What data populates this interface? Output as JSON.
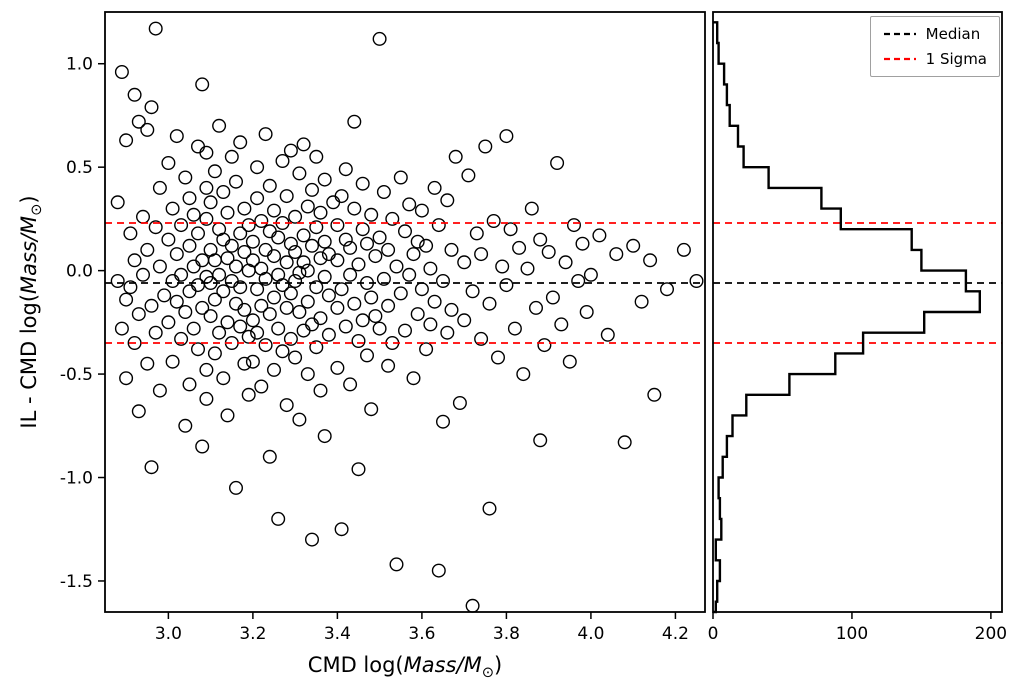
{
  "chart_data": {
    "type": "scatter",
    "title": "",
    "xlabel_parts": {
      "pre": "CMD log(",
      "math": "Mass/M",
      "sun": "⊙",
      "post": ")"
    },
    "ylabel_parts": {
      "pre": "IL - CMD log(",
      "math": "Mass/M",
      "sun": "⊙",
      "post": ")"
    },
    "xlim": [
      2.85,
      4.27
    ],
    "ylim": [
      -1.65,
      1.25
    ],
    "xticks": [
      3.0,
      3.2,
      3.4,
      3.6,
      3.8,
      4.0,
      4.2
    ],
    "xtick_labels": [
      "3.0",
      "3.2",
      "3.4",
      "3.6",
      "3.8",
      "4.0",
      "4.2"
    ],
    "yticks": [
      -1.5,
      -1.0,
      -0.5,
      0.0,
      0.5,
      1.0
    ],
    "ytick_labels": [
      "-1.5",
      "-1.0",
      "-0.5",
      "0.0",
      "0.5",
      "1.0"
    ],
    "median": -0.06,
    "sigma_upper": 0.23,
    "sigma_lower": -0.35,
    "colors": {
      "marker": "#000000",
      "median": "#000000",
      "sigma": "#ff0000",
      "hist": "#000000"
    },
    "legend": [
      {
        "label": "Median",
        "color": "#000000",
        "style": "dashed"
      },
      {
        "label": "1 Sigma",
        "color": "#ff0000",
        "style": "dashed"
      }
    ],
    "histogram": {
      "type": "step",
      "orientation": "horizontal",
      "xlim": [
        0,
        208
      ],
      "xticks": [
        0,
        100,
        200
      ],
      "xtick_labels": [
        "0",
        "100",
        "200"
      ],
      "bin_edges": [
        -1.7,
        -1.6,
        -1.5,
        -1.4,
        -1.3,
        -1.2,
        -1.1,
        -1.0,
        -0.9,
        -0.8,
        -0.7,
        -0.6,
        -0.5,
        -0.4,
        -0.3,
        -0.2,
        -0.1,
        0.0,
        0.1,
        0.2,
        0.3,
        0.4,
        0.5,
        0.6,
        0.7,
        0.8,
        0.9,
        1.0,
        1.1,
        1.2
      ],
      "counts": [
        2,
        3,
        5,
        2,
        6,
        5,
        4,
        7,
        10,
        14,
        24,
        55,
        88,
        108,
        152,
        192,
        182,
        150,
        143,
        92,
        78,
        40,
        22,
        18,
        12,
        10,
        8,
        4,
        3
      ]
    },
    "points": [
      [
        2.88,
        -0.05
      ],
      [
        2.88,
        0.33
      ],
      [
        2.89,
        -0.28
      ],
      [
        2.89,
        0.96
      ],
      [
        2.9,
        0.63
      ],
      [
        2.9,
        -0.14
      ],
      [
        2.9,
        -0.52
      ],
      [
        2.91,
        0.18
      ],
      [
        2.91,
        -0.08
      ],
      [
        2.92,
        0.85
      ],
      [
        2.92,
        -0.35
      ],
      [
        2.92,
        0.05
      ],
      [
        2.93,
        0.72
      ],
      [
        2.93,
        -0.21
      ],
      [
        2.93,
        -0.68
      ],
      [
        2.94,
        0.26
      ],
      [
        2.94,
        -0.02
      ],
      [
        2.95,
        0.68
      ],
      [
        2.95,
        -0.45
      ],
      [
        2.95,
        0.1
      ],
      [
        2.96,
        0.79
      ],
      [
        2.96,
        -0.17
      ],
      [
        2.96,
        -0.95
      ],
      [
        2.97,
        0.21
      ],
      [
        2.97,
        -0.3
      ],
      [
        2.97,
        1.17
      ],
      [
        2.98,
        0.02
      ],
      [
        2.98,
        -0.58
      ],
      [
        2.98,
        0.4
      ],
      [
        2.99,
        -0.12
      ],
      [
        3.0,
        0.15
      ],
      [
        3.0,
        -0.25
      ],
      [
        3.0,
        0.52
      ],
      [
        3.01,
        -0.05
      ],
      [
        3.01,
        0.3
      ],
      [
        3.01,
        -0.44
      ],
      [
        3.02,
        0.08
      ],
      [
        3.02,
        -0.15
      ],
      [
        3.02,
        0.65
      ],
      [
        3.03,
        -0.33
      ],
      [
        3.03,
        0.22
      ],
      [
        3.03,
        -0.02
      ],
      [
        3.04,
        0.45
      ],
      [
        3.04,
        -0.2
      ],
      [
        3.04,
        -0.75
      ],
      [
        3.05,
        0.12
      ],
      [
        3.05,
        -0.1
      ],
      [
        3.05,
        0.35
      ],
      [
        3.05,
        -0.55
      ],
      [
        3.06,
        0.02
      ],
      [
        3.06,
        0.27
      ],
      [
        3.06,
        -0.28
      ],
      [
        3.07,
        0.6
      ],
      [
        3.07,
        -0.07
      ],
      [
        3.07,
        -0.38
      ],
      [
        3.07,
        0.18
      ],
      [
        3.08,
        -0.18
      ],
      [
        3.08,
        0.05
      ],
      [
        3.08,
        -0.85
      ],
      [
        3.08,
        0.9
      ],
      [
        3.09,
        -0.48
      ],
      [
        3.09,
        0.25
      ],
      [
        3.09,
        -0.03
      ],
      [
        3.09,
        0.4
      ],
      [
        3.09,
        -0.62
      ],
      [
        3.09,
        0.57
      ],
      [
        3.1,
        0.1
      ],
      [
        3.1,
        -0.22
      ],
      [
        3.1,
        0.33
      ],
      [
        3.1,
        -0.06
      ],
      [
        3.11,
        0.48
      ],
      [
        3.11,
        -0.4
      ],
      [
        3.11,
        0.05
      ],
      [
        3.11,
        -0.14
      ],
      [
        3.12,
        0.2
      ],
      [
        3.12,
        -0.3
      ],
      [
        3.12,
        0.7
      ],
      [
        3.12,
        -0.02
      ],
      [
        3.13,
        -0.52
      ],
      [
        3.13,
        0.15
      ],
      [
        3.13,
        -0.1
      ],
      [
        3.13,
        0.38
      ],
      [
        3.14,
        -0.25
      ],
      [
        3.14,
        0.06
      ],
      [
        3.14,
        -0.7
      ],
      [
        3.14,
        0.28
      ],
      [
        3.15,
        -0.05
      ],
      [
        3.15,
        0.55
      ],
      [
        3.15,
        -0.35
      ],
      [
        3.15,
        0.12
      ],
      [
        3.16,
        -0.16
      ],
      [
        3.16,
        0.02
      ],
      [
        3.16,
        -1.05
      ],
      [
        3.16,
        0.43
      ],
      [
        3.17,
        -0.27
      ],
      [
        3.17,
        0.18
      ],
      [
        3.17,
        -0.08
      ],
      [
        3.17,
        0.62
      ],
      [
        3.18,
        -0.45
      ],
      [
        3.18,
        0.09
      ],
      [
        3.18,
        -0.19
      ],
      [
        3.18,
        0.3
      ],
      [
        3.19,
        -0.6
      ],
      [
        3.19,
        0.0
      ],
      [
        3.19,
        -0.32
      ],
      [
        3.19,
        0.22
      ],
      [
        3.2,
        0.14
      ],
      [
        3.2,
        -0.24
      ],
      [
        3.2,
        0.05
      ],
      [
        3.2,
        -0.44
      ],
      [
        3.21,
        0.35
      ],
      [
        3.21,
        -0.09
      ],
      [
        3.21,
        0.5
      ],
      [
        3.21,
        -0.3
      ],
      [
        3.22,
        0.01
      ],
      [
        3.22,
        -0.17
      ],
      [
        3.22,
        0.24
      ],
      [
        3.22,
        -0.56
      ],
      [
        3.23,
        0.1
      ],
      [
        3.23,
        -0.36
      ],
      [
        3.23,
        0.66
      ],
      [
        3.23,
        -0.04
      ],
      [
        3.24,
        0.19
      ],
      [
        3.24,
        -0.21
      ],
      [
        3.24,
        -0.9
      ],
      [
        3.24,
        0.41
      ],
      [
        3.25,
        -0.13
      ],
      [
        3.25,
        0.07
      ],
      [
        3.25,
        -0.48
      ],
      [
        3.25,
        0.29
      ],
      [
        3.26,
        -0.02
      ],
      [
        3.26,
        -1.2
      ],
      [
        3.26,
        0.16
      ],
      [
        3.26,
        -0.28
      ],
      [
        3.27,
        0.53
      ],
      [
        3.27,
        -0.07
      ],
      [
        3.27,
        -0.39
      ],
      [
        3.27,
        0.23
      ],
      [
        3.28,
        -0.18
      ],
      [
        3.28,
        0.04
      ],
      [
        3.28,
        -0.65
      ],
      [
        3.28,
        0.36
      ],
      [
        3.29,
        -0.11
      ],
      [
        3.29,
        0.13
      ],
      [
        3.29,
        -0.33
      ],
      [
        3.29,
        0.58
      ],
      [
        3.3,
        -0.05
      ],
      [
        3.3,
        0.26
      ],
      [
        3.3,
        -0.42
      ],
      [
        3.3,
        0.09
      ],
      [
        3.31,
        -0.2
      ],
      [
        3.31,
        0.47
      ],
      [
        3.31,
        -0.01
      ],
      [
        3.31,
        -0.72
      ],
      [
        3.32,
        0.17
      ],
      [
        3.32,
        -0.29
      ],
      [
        3.32,
        0.04
      ],
      [
        3.32,
        0.61
      ],
      [
        3.33,
        -0.15
      ],
      [
        3.33,
        0.31
      ],
      [
        3.33,
        -0.5
      ],
      [
        3.33,
        0.0
      ],
      [
        3.34,
        -0.26
      ],
      [
        3.34,
        0.12
      ],
      [
        3.34,
        -1.3
      ],
      [
        3.34,
        0.39
      ],
      [
        3.35,
        -0.08
      ],
      [
        3.35,
        0.21
      ],
      [
        3.35,
        -0.37
      ],
      [
        3.35,
        0.55
      ],
      [
        3.36,
        -0.23
      ],
      [
        3.36,
        0.06
      ],
      [
        3.36,
        -0.58
      ],
      [
        3.36,
        0.28
      ],
      [
        3.37,
        -0.03
      ],
      [
        3.37,
        0.44
      ],
      [
        3.37,
        -0.8
      ],
      [
        3.37,
        0.14
      ],
      [
        3.38,
        -0.31
      ],
      [
        3.38,
        0.08
      ],
      [
        3.38,
        -0.12
      ],
      [
        3.39,
        0.33
      ],
      [
        3.4,
        -0.18
      ],
      [
        3.4,
        0.22
      ],
      [
        3.4,
        -0.47
      ],
      [
        3.4,
        0.05
      ],
      [
        3.41,
        0.36
      ],
      [
        3.41,
        -0.09
      ],
      [
        3.41,
        -1.25
      ],
      [
        3.42,
        0.15
      ],
      [
        3.42,
        -0.27
      ],
      [
        3.42,
        0.49
      ],
      [
        3.43,
        -0.02
      ],
      [
        3.43,
        0.11
      ],
      [
        3.43,
        -0.55
      ],
      [
        3.44,
        0.3
      ],
      [
        3.44,
        -0.16
      ],
      [
        3.44,
        0.72
      ],
      [
        3.45,
        -0.34
      ],
      [
        3.45,
        0.03
      ],
      [
        3.45,
        -0.96
      ],
      [
        3.46,
        0.2
      ],
      [
        3.46,
        -0.24
      ],
      [
        3.46,
        0.42
      ],
      [
        3.47,
        -0.06
      ],
      [
        3.47,
        -0.41
      ],
      [
        3.47,
        0.13
      ],
      [
        3.48,
        0.27
      ],
      [
        3.48,
        -0.13
      ],
      [
        3.48,
        -0.67
      ],
      [
        3.49,
        0.07
      ],
      [
        3.49,
        -0.22
      ],
      [
        3.5,
        1.12
      ],
      [
        3.5,
        0.16
      ],
      [
        3.5,
        -0.28
      ],
      [
        3.51,
        -0.04
      ],
      [
        3.51,
        0.38
      ],
      [
        3.52,
        -0.46
      ],
      [
        3.52,
        0.1
      ],
      [
        3.52,
        -0.17
      ],
      [
        3.53,
        0.25
      ],
      [
        3.53,
        -0.35
      ],
      [
        3.54,
        0.02
      ],
      [
        3.54,
        -1.42
      ],
      [
        3.55,
        0.45
      ],
      [
        3.55,
        -0.11
      ],
      [
        3.56,
        0.19
      ],
      [
        3.56,
        -0.29
      ],
      [
        3.57,
        -0.02
      ],
      [
        3.57,
        0.32
      ],
      [
        3.58,
        -0.52
      ],
      [
        3.58,
        0.08
      ],
      [
        3.59,
        -0.21
      ],
      [
        3.59,
        0.14
      ],
      [
        3.6,
        0.29
      ],
      [
        3.6,
        -0.09
      ],
      [
        3.61,
        -0.38
      ],
      [
        3.61,
        0.12
      ],
      [
        3.62,
        0.01
      ],
      [
        3.62,
        -0.26
      ],
      [
        3.63,
        0.4
      ],
      [
        3.63,
        -0.15
      ],
      [
        3.64,
        -1.45
      ],
      [
        3.64,
        0.22
      ],
      [
        3.65,
        -0.05
      ],
      [
        3.65,
        -0.73
      ],
      [
        3.66,
        0.34
      ],
      [
        3.66,
        -0.3
      ],
      [
        3.67,
        0.1
      ],
      [
        3.67,
        -0.19
      ],
      [
        3.68,
        0.55
      ],
      [
        3.69,
        -0.64
      ],
      [
        3.7,
        0.04
      ],
      [
        3.7,
        -0.24
      ],
      [
        3.71,
        0.46
      ],
      [
        3.72,
        -0.1
      ],
      [
        3.72,
        -1.62
      ],
      [
        3.73,
        0.18
      ],
      [
        3.74,
        -0.33
      ],
      [
        3.74,
        0.08
      ],
      [
        3.75,
        0.6
      ],
      [
        3.76,
        -0.16
      ],
      [
        3.76,
        -1.15
      ],
      [
        3.77,
        0.24
      ],
      [
        3.78,
        -0.42
      ],
      [
        3.79,
        0.02
      ],
      [
        3.8,
        0.65
      ],
      [
        3.8,
        -0.07
      ],
      [
        3.81,
        0.2
      ],
      [
        3.82,
        -0.28
      ],
      [
        3.83,
        0.11
      ],
      [
        3.84,
        -0.5
      ],
      [
        3.85,
        0.01
      ],
      [
        3.86,
        0.3
      ],
      [
        3.87,
        -0.18
      ],
      [
        3.88,
        -0.82
      ],
      [
        3.88,
        0.15
      ],
      [
        3.89,
        -0.36
      ],
      [
        3.9,
        0.09
      ],
      [
        3.91,
        -0.13
      ],
      [
        3.92,
        0.52
      ],
      [
        3.93,
        -0.26
      ],
      [
        3.94,
        0.04
      ],
      [
        3.95,
        -0.44
      ],
      [
        3.96,
        0.22
      ],
      [
        3.97,
        -0.05
      ],
      [
        3.98,
        0.13
      ],
      [
        3.99,
        -0.2
      ],
      [
        4.0,
        -0.02
      ],
      [
        4.02,
        0.17
      ],
      [
        4.04,
        -0.31
      ],
      [
        4.06,
        0.08
      ],
      [
        4.08,
        -0.83
      ],
      [
        4.1,
        0.12
      ],
      [
        4.12,
        -0.15
      ],
      [
        4.14,
        0.05
      ],
      [
        4.15,
        -0.6
      ],
      [
        4.18,
        -0.09
      ],
      [
        4.22,
        0.1
      ],
      [
        4.25,
        -0.05
      ]
    ]
  }
}
